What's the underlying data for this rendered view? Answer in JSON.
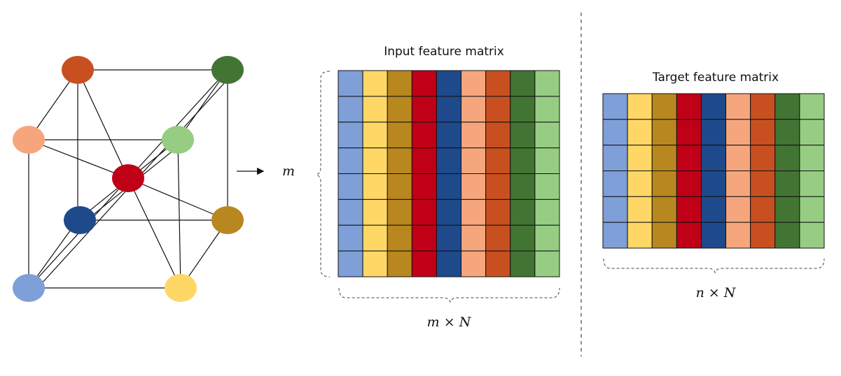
{
  "colors": {
    "light_blue": "#7F9FD9",
    "yellow": "#FFD766",
    "gold": "#B8871F",
    "red": "#C00017",
    "navy": "#1E4A8C",
    "salmon": "#F6A67D",
    "orange": "#C85020",
    "green": "#427533",
    "light_green": "#96CD83"
  },
  "crystal": {
    "atom_colors": [
      "orange",
      "green",
      "salmon",
      "light_green",
      "red",
      "navy",
      "gold",
      "light_blue",
      "yellow"
    ]
  },
  "input_matrix": {
    "title": "Input feature matrix",
    "rows": 8,
    "column_colors": [
      "light_blue",
      "yellow",
      "gold",
      "red",
      "navy",
      "salmon",
      "orange",
      "green",
      "light_green"
    ],
    "row_label": "m",
    "size_label": "m × N"
  },
  "target_matrix": {
    "title": "Target feature matrix",
    "rows": 6,
    "column_colors": [
      "light_blue",
      "yellow",
      "gold",
      "red",
      "navy",
      "salmon",
      "orange",
      "green",
      "light_green"
    ],
    "size_label": "n × N"
  }
}
